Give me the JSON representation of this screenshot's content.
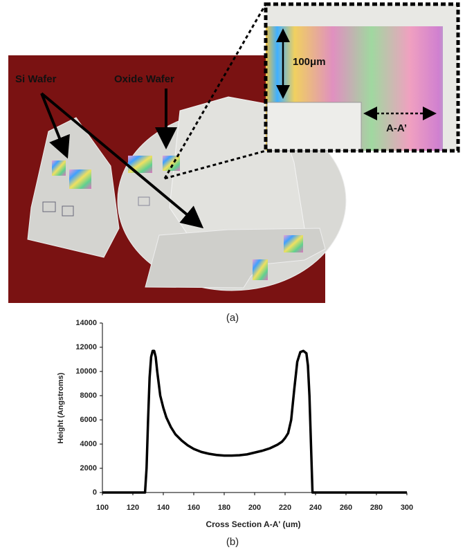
{
  "figure": {
    "labels": {
      "si_wafer": "Si Wafer",
      "oxide_wafer": "Oxide Wafer",
      "scale": "100μm",
      "section": "A-A’"
    },
    "captions": {
      "a": "(a)",
      "b": "(b)"
    }
  },
  "chart_data": {
    "type": "line",
    "x_label": "Cross Section A-A' (um)",
    "y_label": "Height (Angstroms)",
    "x": [
      100,
      128,
      129,
      130,
      131,
      132,
      133,
      134,
      135,
      136,
      137,
      138,
      140,
      142,
      145,
      148,
      152,
      156,
      160,
      165,
      170,
      175,
      180,
      185,
      190,
      195,
      200,
      205,
      210,
      215,
      218,
      220,
      222,
      224,
      226,
      228,
      230,
      232,
      234,
      235,
      236,
      237,
      238,
      240,
      260,
      300
    ],
    "values": [
      0,
      0,
      2000,
      6000,
      9500,
      11200,
      11700,
      11700,
      11200,
      10000,
      9000,
      8000,
      7000,
      6200,
      5400,
      4800,
      4300,
      3900,
      3600,
      3350,
      3200,
      3100,
      3050,
      3050,
      3080,
      3150,
      3300,
      3450,
      3650,
      3950,
      4200,
      4500,
      4900,
      6000,
      8500,
      10800,
      11600,
      11700,
      11500,
      10500,
      8000,
      4000,
      0,
      0,
      0,
      0
    ],
    "color": "#000000",
    "xlim": [
      100,
      300
    ],
    "xticks": [
      100,
      120,
      140,
      160,
      180,
      200,
      220,
      240,
      260,
      280,
      300
    ],
    "ylim": [
      0,
      14000
    ],
    "yticks": [
      0,
      2000,
      4000,
      6000,
      8000,
      10000,
      12000,
      14000
    ],
    "grid": false
  }
}
